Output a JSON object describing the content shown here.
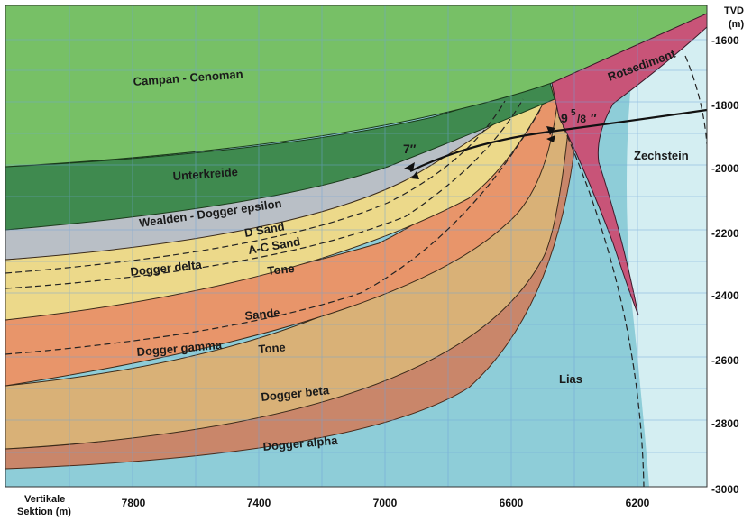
{
  "axis": {
    "right_title": "TVD",
    "right_unit": "(m)",
    "right_ticks": [
      "-1600",
      "-1800",
      "-2000",
      "-2200",
      "-2400",
      "-2600",
      "-2800",
      "-3000"
    ],
    "bottom_title_line1": "Vertikale",
    "bottom_title_line2": "Sektion (m)",
    "bottom_ticks": [
      "7800",
      "7400",
      "7000",
      "6600",
      "6200"
    ]
  },
  "layers": {
    "campan": "Campan - Cenoman",
    "unterkreide": "Unterkreide",
    "wealden": "Wealden - Dogger epsilon",
    "d_sand": "D Sand",
    "ac_sand": "A-C Sand",
    "dogger_delta": "Dogger delta",
    "tone_upper": "Tone",
    "sande": "Sande",
    "dogger_gamma": "Dogger gamma",
    "tone_lower": "Tone",
    "dogger_beta": "Dogger beta",
    "dogger_alpha": "Dogger alpha",
    "lias": "Lias",
    "zechstein": "Zechstein",
    "rotsediment": "Rotsediment"
  },
  "well": {
    "casing_7": "7″",
    "casing_95_main": "9",
    "casing_95_sup": "5",
    "casing_95_sub": "/8",
    "casing_95_quote": "″"
  },
  "colors": {
    "campan": "#77c066",
    "unterkreide": "#3f8a4f",
    "wealden": "#b9bfc6",
    "dogger_delta": "#ecd98a",
    "sande": "#e8956a",
    "dogger_beta": "#d9b177",
    "dogger_alpha": "#c9866a",
    "lias": "#8ecdd8",
    "zechstein": "#d4eef2",
    "rotsediment": "#c85478"
  }
}
